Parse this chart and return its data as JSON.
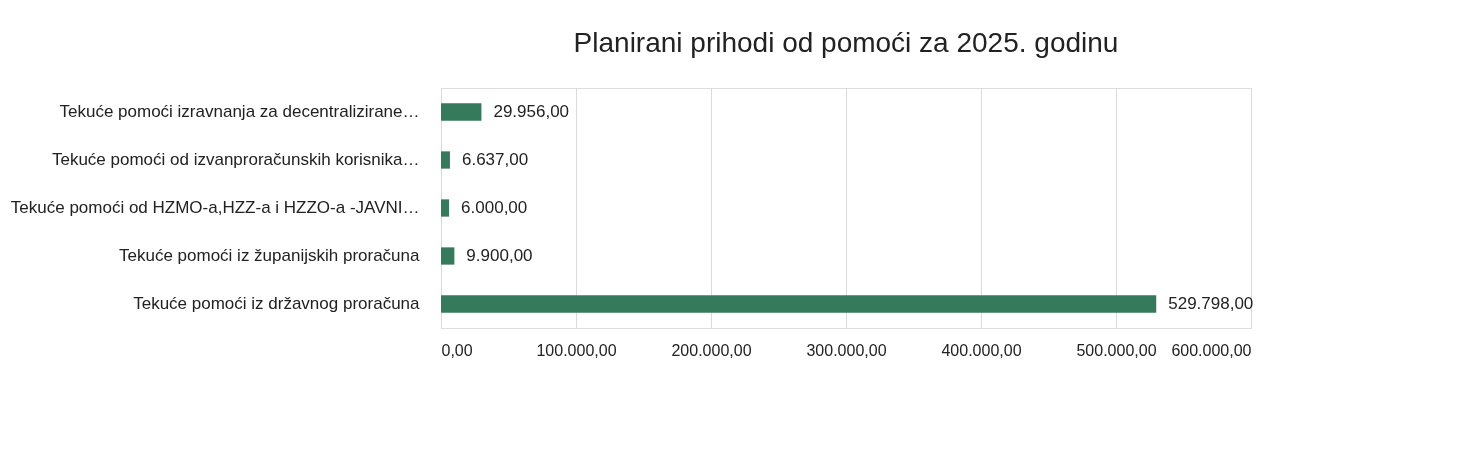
{
  "chart_data": {
    "type": "bar",
    "orientation": "horizontal",
    "title": "Planirani prihodi od pomoći za 2025. godinu",
    "categories": [
      "Tekuće pomoći izravnanja za decentralizirane…",
      "Tekuće pomoći od izvanproračunskih korisnika…",
      "Tekuće pomoći od HZMO-a,HZZ-a i HZZO-a -JAVNI…",
      "Tekuće pomoći iz županijskih proračuna",
      "Tekuće pomoći iz državnog proračuna"
    ],
    "values": [
      29956,
      6637,
      6000,
      9900,
      529798
    ],
    "value_labels": [
      "29.956,00",
      "6.637,00",
      "6.000,00",
      "9.900,00",
      "529.798,00"
    ],
    "color": "#357a5b",
    "xlim": [
      0,
      600000
    ],
    "xticks": [
      {
        "value": 0,
        "label": "0,00"
      },
      {
        "value": 100000,
        "label": "100.000,00"
      },
      {
        "value": 200000,
        "label": "200.000,00"
      },
      {
        "value": 300000,
        "label": "300.000,00"
      },
      {
        "value": 400000,
        "label": "400.000,00"
      },
      {
        "value": 500000,
        "label": "500.000,00"
      },
      {
        "value": 600000,
        "label": "600.000,00"
      }
    ],
    "grid": "x"
  }
}
